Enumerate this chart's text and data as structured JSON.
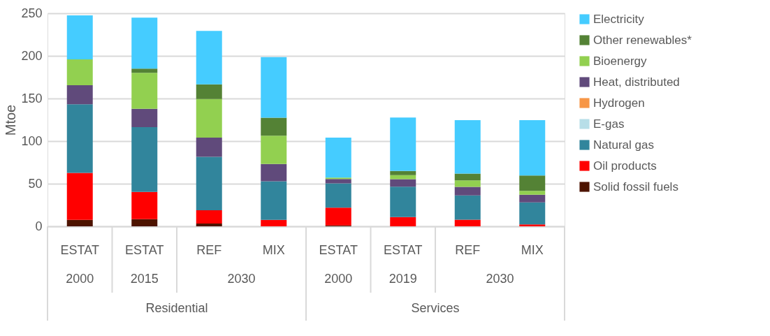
{
  "chart_data": {
    "type": "bar",
    "stacked": true,
    "ylabel": "Mtoe",
    "categories": [
      "ESTAT",
      "ESTAT",
      "REF",
      "MIX",
      "ESTAT",
      "ESTAT",
      "REF",
      "MIX"
    ],
    "annotations": [
      "2000",
      "2015",
      "2030",
      "2000",
      "2019",
      "2030",
      "Residential",
      "Services"
    ],
    "series": [
      {
        "name": "Solid fossil fuels",
        "color": "#4d1300",
        "values": [
          7.5,
          8.5,
          3.3,
          0,
          1.0,
          0,
          0,
          0
        ]
      },
      {
        "name": "Oil products",
        "color": "#ff0000",
        "values": [
          55.3,
          31.9,
          15.5,
          7.5,
          20.9,
          10.8,
          7.7,
          2.3
        ]
      },
      {
        "name": "Natural gas",
        "color": "#31859c",
        "values": [
          80.4,
          76.0,
          62.8,
          45.3,
          28.6,
          35.8,
          28.6,
          25.8
        ]
      },
      {
        "name": "E-gas",
        "color": "#b7dee8",
        "values": [
          0,
          0,
          0,
          0,
          0,
          0,
          0,
          0
        ]
      },
      {
        "name": "Hydrogen",
        "color": "#f79646",
        "values": [
          0,
          0,
          0,
          0,
          0,
          0,
          0,
          0
        ]
      },
      {
        "name": "Heat, distributed",
        "color": "#604a7b",
        "values": [
          22.4,
          21.6,
          22.4,
          20.3,
          5.1,
          8.8,
          10.0,
          9.0
        ]
      },
      {
        "name": "Bioenergy",
        "color": "#92d050",
        "values": [
          30.3,
          42.2,
          45.3,
          33.2,
          1.6,
          4.6,
          7.5,
          4.4
        ]
      },
      {
        "name": "Other renewables*",
        "color": "#548235",
        "values": [
          null,
          4.9,
          17.3,
          21.1,
          0,
          4.9,
          8.0,
          18.2
        ]
      },
      {
        "name": "Electricity",
        "color": "#45ccff",
        "values": [
          51.6,
          59.8,
          62.8,
          71.1,
          46.8,
          62.8,
          62.8,
          64.9
        ]
      }
    ],
    "ylim": [
      0,
      250
    ],
    "yticks": [
      0,
      50,
      100,
      150,
      200,
      250
    ],
    "grid": "y",
    "legend": "right"
  }
}
